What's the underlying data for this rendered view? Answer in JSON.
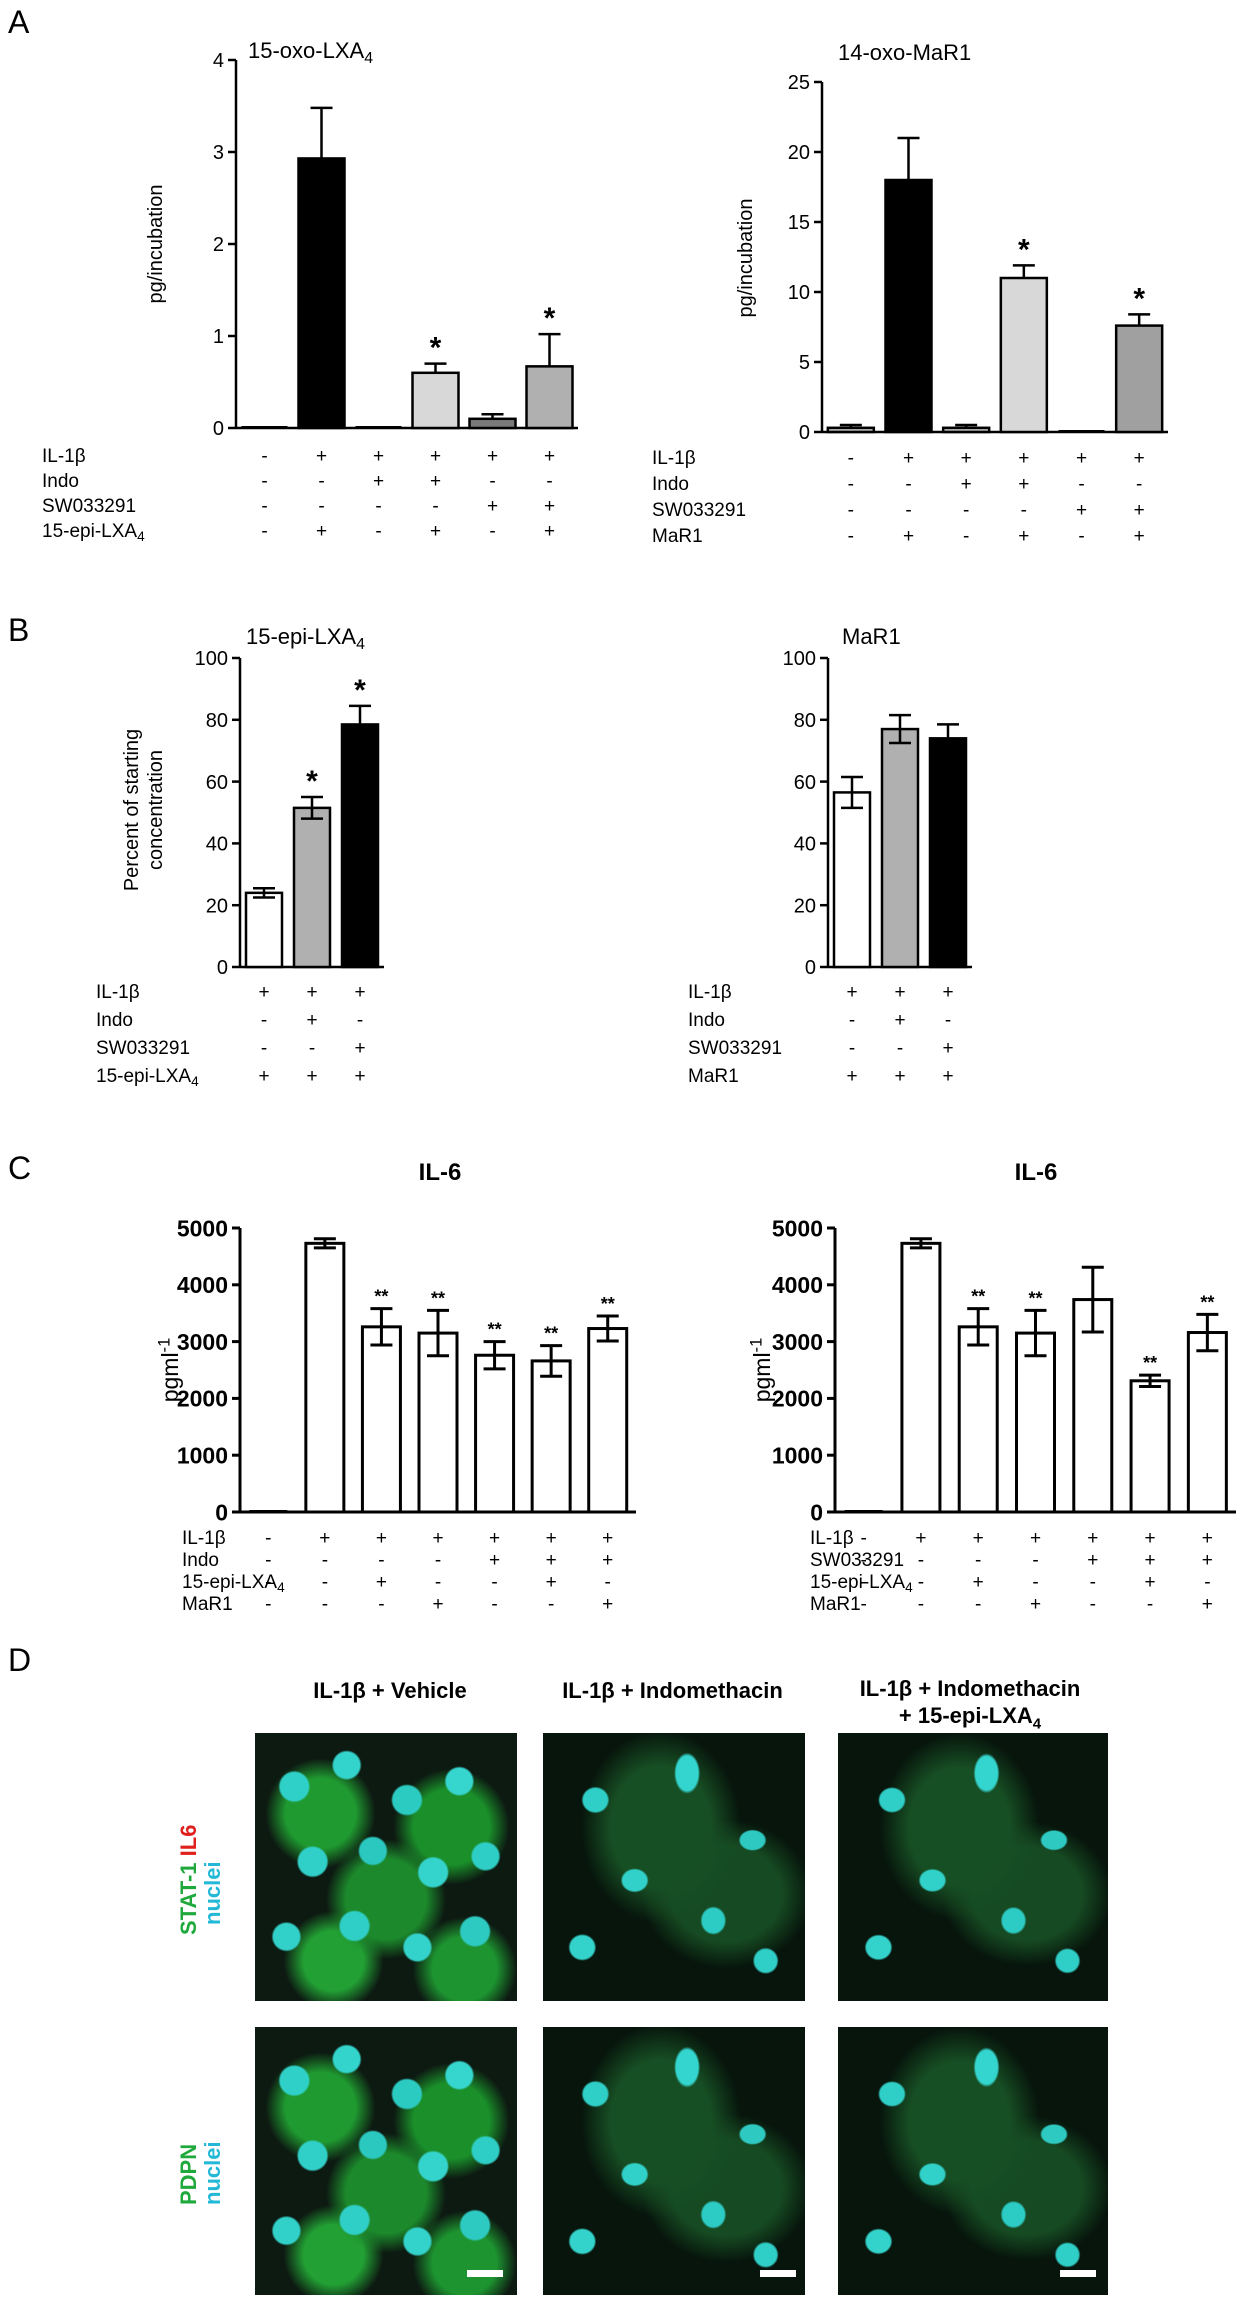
{
  "panels": {
    "A": "A",
    "B": "B",
    "C": "C",
    "D": "D"
  },
  "chart_data": [
    {
      "type": "bar",
      "panel": "A",
      "title": "15-oxo-LXA4",
      "ylabel": "pg/incubation",
      "ylim": [
        0,
        4
      ],
      "yticks": [
        "0",
        "1",
        "2",
        "3",
        "4"
      ],
      "values": [
        0,
        2.93,
        0,
        0.6,
        0.1,
        0.67
      ],
      "errors": [
        0,
        0.55,
        0,
        0.1,
        0.05,
        0.35
      ],
      "colors": [
        "#000000",
        "#000000",
        "#000000",
        "#d8d8d8",
        "#7a7a7a",
        "#b0b0b0"
      ],
      "annotations": [
        "",
        "",
        "",
        "*",
        "",
        "*"
      ],
      "conditions": [
        {
          "label": "IL-1β",
          "signs": [
            "-",
            "+",
            "+",
            "+",
            "+",
            "+"
          ]
        },
        {
          "label": "Indo",
          "signs": [
            "-",
            "-",
            "+",
            "+",
            "-",
            "-"
          ]
        },
        {
          "label": "SW033291",
          "signs": [
            "-",
            "-",
            "-",
            "-",
            "+",
            "+"
          ]
        },
        {
          "label": "15-epi-LXA4",
          "signs": [
            "-",
            "+",
            "-",
            "+",
            "-",
            "+"
          ]
        }
      ]
    },
    {
      "type": "bar",
      "panel": "A",
      "title": "14-oxo-MaR1",
      "ylabel": "pg/incubation",
      "ylim": [
        0,
        25
      ],
      "yticks": [
        "0",
        "5",
        "10",
        "15",
        "20",
        "25"
      ],
      "values": [
        0.3,
        18,
        0.3,
        11,
        0,
        7.6
      ],
      "errors": [
        0.2,
        3,
        0.2,
        0.9,
        0,
        0.8
      ],
      "colors": [
        "#b0b0b0",
        "#000000",
        "#b0b0b0",
        "#d8d8d8",
        "#000000",
        "#a0a0a0"
      ],
      "annotations": [
        "",
        "",
        "",
        "*",
        "",
        "*"
      ],
      "conditions": [
        {
          "label": "IL-1β",
          "signs": [
            "-",
            "+",
            "+",
            "+",
            "+",
            "+"
          ]
        },
        {
          "label": "Indo",
          "signs": [
            "-",
            "-",
            "+",
            "+",
            "-",
            "-"
          ]
        },
        {
          "label": "SW033291",
          "signs": [
            "-",
            "-",
            "-",
            "-",
            "+",
            "+"
          ]
        },
        {
          "label": "MaR1",
          "signs": [
            "-",
            "+",
            "-",
            "+",
            "-",
            "+"
          ]
        }
      ]
    },
    {
      "type": "bar",
      "panel": "B",
      "title": "15-epi-LXA4",
      "ylabel": "Percent of starting concentration",
      "ylim": [
        0,
        100
      ],
      "yticks": [
        "0",
        "20",
        "40",
        "60",
        "80",
        "100"
      ],
      "values": [
        24,
        51.5,
        78.5
      ],
      "errors": [
        1.5,
        3.5,
        6
      ],
      "colors": [
        "#ffffff",
        "#b0b0b0",
        "#000000"
      ],
      "annotations": [
        "",
        "*",
        "*"
      ],
      "conditions": [
        {
          "label": "IL-1β",
          "signs": [
            "+",
            "+",
            "+"
          ]
        },
        {
          "label": "Indo",
          "signs": [
            "-",
            "+",
            "-"
          ]
        },
        {
          "label": "SW033291",
          "signs": [
            "-",
            "-",
            "+"
          ]
        },
        {
          "label": "15-epi-LXA4",
          "signs": [
            "+",
            "+",
            "+"
          ]
        }
      ]
    },
    {
      "type": "bar",
      "panel": "B",
      "title": "MaR1",
      "ylabel": "",
      "ylim": [
        0,
        100
      ],
      "yticks": [
        "0",
        "20",
        "40",
        "60",
        "80",
        "100"
      ],
      "values": [
        56.5,
        77,
        74
      ],
      "errors": [
        5,
        4.5,
        4.5
      ],
      "colors": [
        "#ffffff",
        "#b0b0b0",
        "#000000"
      ],
      "annotations": [
        "",
        "",
        ""
      ],
      "conditions": [
        {
          "label": "IL-1β",
          "signs": [
            "+",
            "+",
            "+"
          ]
        },
        {
          "label": "Indo",
          "signs": [
            "-",
            "+",
            "-"
          ]
        },
        {
          "label": "SW033291",
          "signs": [
            "-",
            "-",
            "+"
          ]
        },
        {
          "label": "MaR1",
          "signs": [
            "+",
            "+",
            "+"
          ]
        }
      ]
    },
    {
      "type": "bar",
      "panel": "C",
      "title": "IL-6",
      "ylabel": "pgml-1",
      "ylim": [
        0,
        5000
      ],
      "yticks": [
        "0",
        "1000",
        "2000",
        "3000",
        "4000",
        "5000"
      ],
      "values": [
        0,
        4730,
        3260,
        3150,
        2760,
        2660,
        3230
      ],
      "errors": [
        0,
        80,
        320,
        400,
        240,
        270,
        220
      ],
      "colors": [
        "#ffffff",
        "#ffffff",
        "#ffffff",
        "#ffffff",
        "#ffffff",
        "#ffffff",
        "#ffffff"
      ],
      "annotations": [
        "",
        "",
        "**",
        "**",
        "**",
        "**",
        "**"
      ],
      "conditions": [
        {
          "label": "IL-1β",
          "signs": [
            "-",
            "+",
            "+",
            "+",
            "+",
            "+",
            "+"
          ]
        },
        {
          "label": "Indo",
          "signs": [
            "-",
            "-",
            "-",
            "-",
            "+",
            "+",
            "+"
          ]
        },
        {
          "label": "15-epi-LXA4",
          "signs": [
            "-",
            "-",
            "+",
            "-",
            "-",
            "+",
            "-"
          ]
        },
        {
          "label": "MaR1",
          "signs": [
            "-",
            "-",
            "-",
            "+",
            "-",
            "-",
            "+"
          ]
        }
      ]
    },
    {
      "type": "bar",
      "panel": "C",
      "title": "IL-6",
      "ylabel": "pgml-1",
      "ylim": [
        0,
        5000
      ],
      "yticks": [
        "0",
        "1000",
        "2000",
        "3000",
        "4000",
        "5000"
      ],
      "values": [
        0,
        4730,
        3260,
        3150,
        3740,
        2310,
        3160
      ],
      "errors": [
        0,
        80,
        320,
        400,
        570,
        100,
        320
      ],
      "colors": [
        "#ffffff",
        "#ffffff",
        "#ffffff",
        "#ffffff",
        "#ffffff",
        "#ffffff",
        "#ffffff"
      ],
      "annotations": [
        "",
        "",
        "**",
        "**",
        "",
        "**",
        "**"
      ],
      "conditions": [
        {
          "label": "IL-1β",
          "signs": [
            "-",
            "+",
            "+",
            "+",
            "+",
            "+",
            "+"
          ]
        },
        {
          "label": "SW033291",
          "signs": [
            "-",
            "-",
            "-",
            "-",
            "+",
            "+",
            "+"
          ]
        },
        {
          "label": "15-epi-LXA4",
          "signs": [
            "-",
            "-",
            "+",
            "-",
            "-",
            "+",
            "-"
          ]
        },
        {
          "label": "MaR1",
          "signs": [
            "-",
            "-",
            "-",
            "+",
            "-",
            "-",
            "+"
          ]
        }
      ]
    }
  ],
  "micrographs": {
    "column_titles": [
      "IL-1β + Vehicle",
      "IL-1β + Indomethacin",
      "IL-1β + Indomethacin + 15-epi-LXA4"
    ],
    "row1_label": {
      "stat1": "STAT-1",
      "il6": "IL6",
      "nuclei": "nuclei"
    },
    "row2_label": {
      "pdpn": "PDPN",
      "nuclei": "nuclei"
    },
    "colors": {
      "stat1": "#1fa83c",
      "il6": "#e0201c",
      "nuclei": "#22b8d6"
    }
  }
}
